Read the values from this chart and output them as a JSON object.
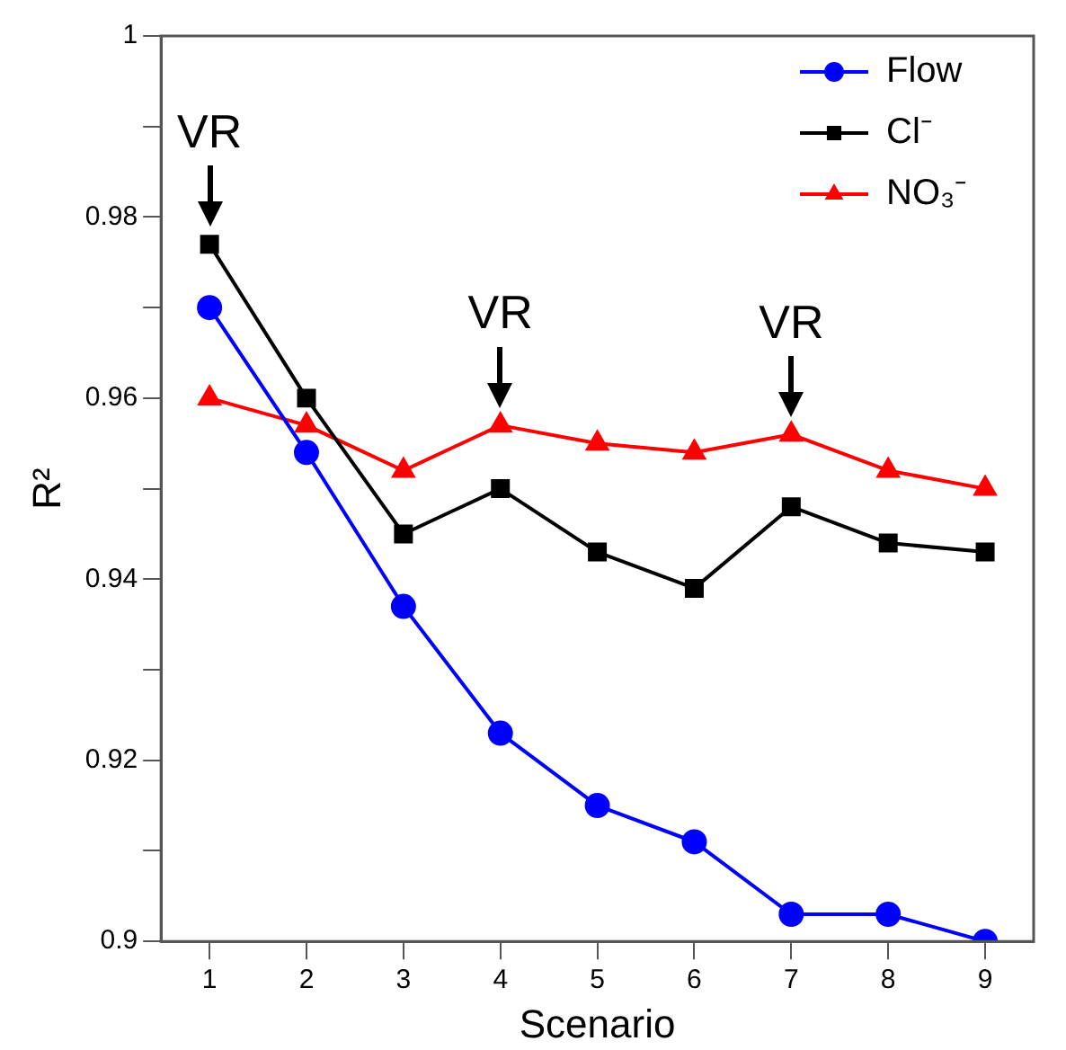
{
  "chart_data": {
    "type": "line",
    "xlabel": "Scenario",
    "ylabel": "R²",
    "categories": [
      "1",
      "2",
      "3",
      "4",
      "5",
      "6",
      "7",
      "8",
      "9"
    ],
    "series": [
      {
        "name": "Flow",
        "color": "#0000ff",
        "marker": "circle",
        "values": [
          0.97,
          0.954,
          0.937,
          0.923,
          0.915,
          0.911,
          0.903,
          0.903,
          0.9
        ]
      },
      {
        "name": "Cl⁻",
        "color": "#000000",
        "marker": "square",
        "values": [
          0.977,
          0.96,
          0.945,
          0.95,
          0.943,
          0.939,
          0.948,
          0.944,
          0.943
        ]
      },
      {
        "name": "NO₃⁻",
        "color": "#ff0000",
        "marker": "triangle",
        "values": [
          0.96,
          0.957,
          0.952,
          0.957,
          0.955,
          0.954,
          0.956,
          0.952,
          0.95
        ]
      }
    ],
    "ylim": [
      0.9,
      1
    ],
    "yticks": [
      0.9,
      {
        "value": 0.91,
        "label": null
      },
      0.92,
      {
        "value": 0.93,
        "label": null
      },
      0.94,
      {
        "value": 0.95,
        "label": null
      },
      0.96,
      {
        "value": 0.97,
        "label": null
      },
      0.98,
      {
        "value": 0.99,
        "label": null
      },
      1
    ],
    "annotations": [
      {
        "text": "VR",
        "x": "1",
        "y": 0.977
      },
      {
        "text": "VR",
        "x": "4",
        "y": 0.957
      },
      {
        "text": "VR",
        "x": "7",
        "y": 0.956
      }
    ],
    "grid": false,
    "legend": "top right",
    "line_style": "solid"
  }
}
